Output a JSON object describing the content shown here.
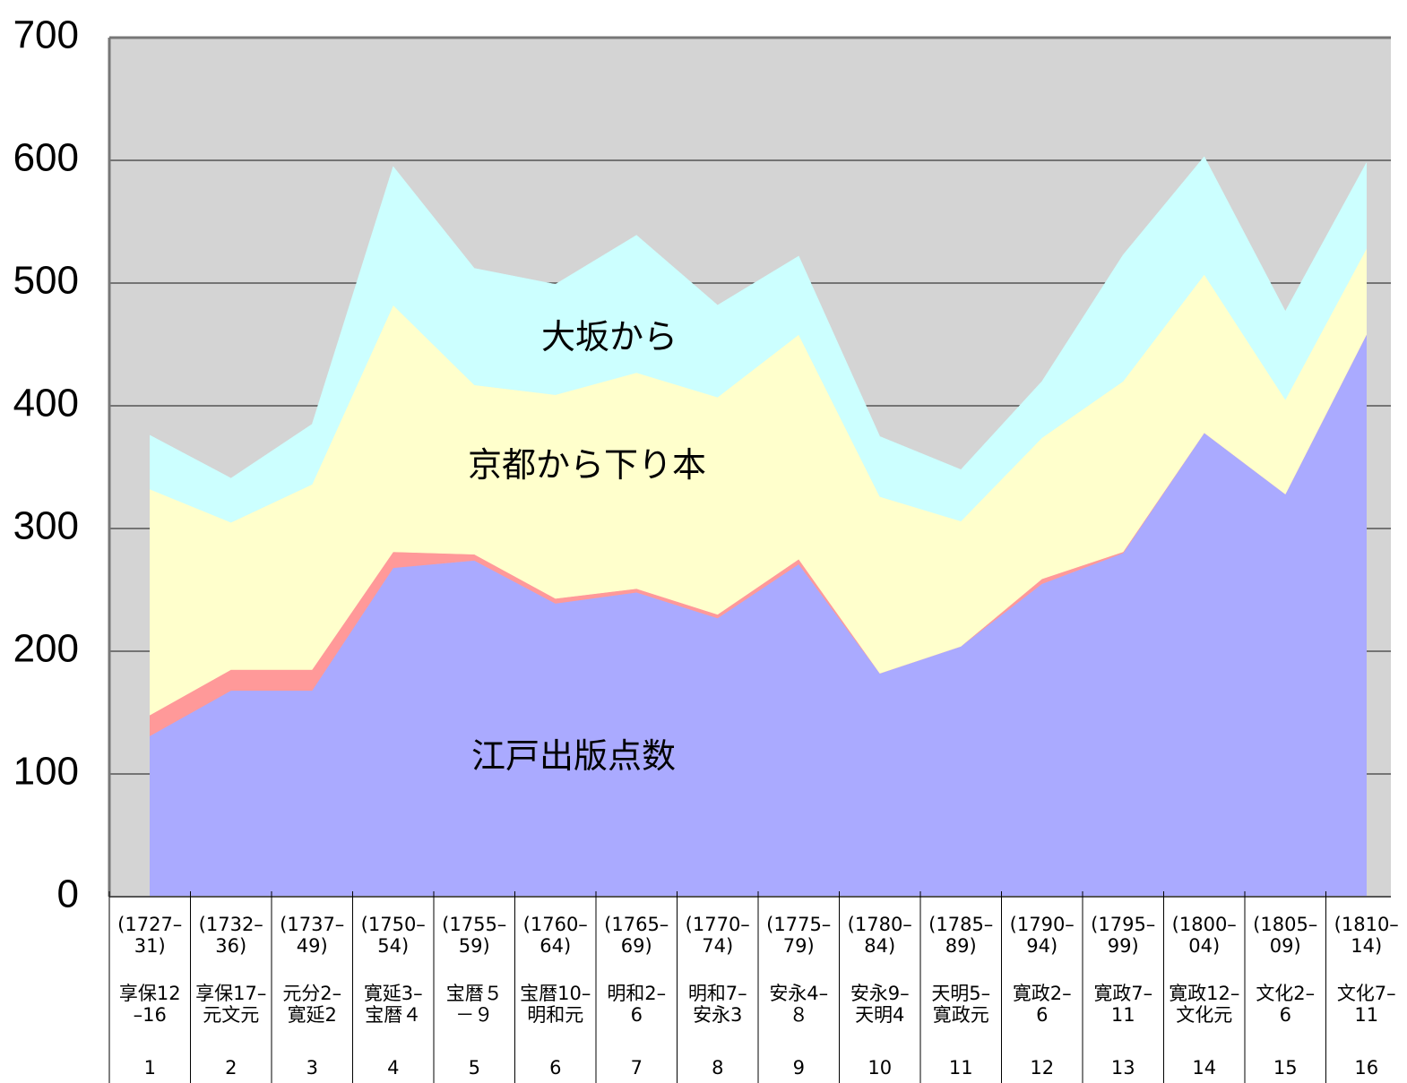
{
  "chart_data": {
    "type": "stacked-area",
    "categories": [
      "1",
      "2",
      "3",
      "4",
      "5",
      "6",
      "7",
      "8",
      "9",
      "10",
      "11",
      "12",
      "13",
      "14",
      "15",
      "16"
    ],
    "periods": [
      "(1727–\n31)",
      "(1732–\n36)",
      "(1737–\n49)",
      "(1750–\n54)",
      "(1755–\n59)",
      "(1760–\n64)",
      "(1765–\n69)",
      "(1770–\n74)",
      "(1775–\n79)",
      "(1780–\n84)",
      "(1785–\n89)",
      "(1790–\n94)",
      "(1795–\n99)",
      "(1800–\n04)",
      "(1805–\n09)",
      "(1810–\n14)"
    ],
    "eras": [
      "享保12\n–16",
      "享保17–\n元文元",
      "元分2–\n寛延2",
      "寛延3–\n宝暦４",
      "宝暦５\n－９",
      "宝暦10–\n明和元",
      "明和2–\n6",
      "明和7–\n安永3",
      "安永4–\n８",
      "安永9–\n天明4",
      "天明5–\n寛政元",
      "寛政2–\n6",
      "寛政7–\n11",
      "寛政12–\n文化元",
      "文化2–\n6",
      "文化7–\n11"
    ],
    "series": [
      {
        "name": "江戸出版点数",
        "color": "#aaaaff",
        "values": [
          131,
          168,
          168,
          268,
          274,
          239,
          248,
          227,
          271,
          182,
          204,
          255,
          280,
          378,
          328,
          458
        ]
      },
      {
        "color": "#ff9999",
        "values": [
          17,
          17,
          17,
          13,
          5,
          4,
          3,
          3,
          4,
          0,
          0,
          4,
          1,
          0,
          0,
          0
        ]
      },
      {
        "name": "京都から下り本",
        "color": "#ffffcc",
        "values": [
          184,
          120,
          151,
          201,
          138,
          166,
          176,
          177,
          183,
          144,
          102,
          115,
          139,
          129,
          77,
          70
        ]
      },
      {
        "name": "大坂から",
        "color": "#ccffff",
        "values": [
          44,
          36,
          49,
          113,
          95,
          90,
          112,
          75,
          64,
          49,
          42,
          46,
          103,
          96,
          72,
          70
        ]
      }
    ],
    "ylim": [
      0,
      700
    ],
    "yticks": [
      0,
      100,
      200,
      300,
      400,
      500,
      600,
      700
    ],
    "grid": true,
    "background": "#d4d4d4"
  }
}
